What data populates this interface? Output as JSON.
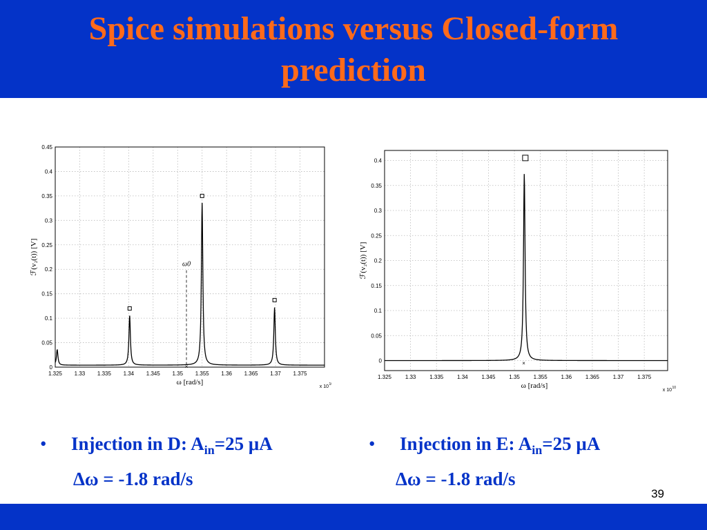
{
  "slide": {
    "title_line1": "Spice simulations versus Closed-form",
    "title_line2": "prediction",
    "page_number": "39",
    "accent_color": "#0433c8",
    "title_color": "#ff6a1a"
  },
  "bullets": [
    {
      "marker": "•",
      "label": "Injection in D: A",
      "sub": "in",
      "rest": "=25 μA",
      "line2": "Δω = -1.8 rad/s"
    },
    {
      "marker": "•",
      "label": "Injection in E: A",
      "sub": "in",
      "rest": "=25 μA",
      "line2": "Δω = -1.8 rad/s"
    }
  ],
  "chart_data": [
    {
      "type": "line",
      "title": "",
      "xlabel": "ω [rad/s]",
      "ylabel": "ℱ(v₂(t)) [V]",
      "x_exponent_label": "x 10",
      "x_exponent": "10",
      "xlim": [
        1.325,
        1.38
      ],
      "ylim": [
        0,
        0.45
      ],
      "x_ticks": [
        1.325,
        1.33,
        1.335,
        1.34,
        1.345,
        1.35,
        1.355,
        1.36,
        1.365,
        1.37,
        1.375
      ],
      "y_ticks": [
        0,
        0.05,
        0.1,
        0.15,
        0.2,
        0.25,
        0.3,
        0.35,
        0.4,
        0.45
      ],
      "grid": true,
      "peaks": [
        {
          "x": 1.3254,
          "y": 0.032
        },
        {
          "x": 1.3402,
          "y": 0.102
        },
        {
          "x": 1.355,
          "y": 0.332
        },
        {
          "x": 1.3698,
          "y": 0.118
        }
      ],
      "squares": [
        {
          "x": 1.3402,
          "y": 0.12
        },
        {
          "x": 1.355,
          "y": 0.35
        },
        {
          "x": 1.3698,
          "y": 0.137
        }
      ],
      "cross": {
        "x": 1.3518,
        "y": 0.0
      },
      "omega0": {
        "x": 1.3518,
        "y": 0.198,
        "label": "ω0"
      }
    },
    {
      "type": "line",
      "title": "",
      "xlabel": "ω [rad/s]",
      "ylabel": "ℱ(v₂(t)) [V]",
      "x_exponent_label": "x 10",
      "x_exponent": "10",
      "xlim": [
        1.325,
        1.3795
      ],
      "ylim": [
        -0.02,
        0.42
      ],
      "x_ticks": [
        1.325,
        1.33,
        1.335,
        1.34,
        1.345,
        1.35,
        1.355,
        1.36,
        1.365,
        1.37,
        1.375
      ],
      "y_ticks": [
        0,
        0.05,
        0.1,
        0.15,
        0.2,
        0.25,
        0.3,
        0.35,
        0.4
      ],
      "grid": true,
      "peaks": [
        {
          "x": 1.3519,
          "y": 0.375
        }
      ],
      "squares": [
        {
          "x": 1.3521,
          "y": 0.405
        }
      ],
      "cross": {
        "x": 1.3518,
        "y": -0.005
      }
    }
  ]
}
